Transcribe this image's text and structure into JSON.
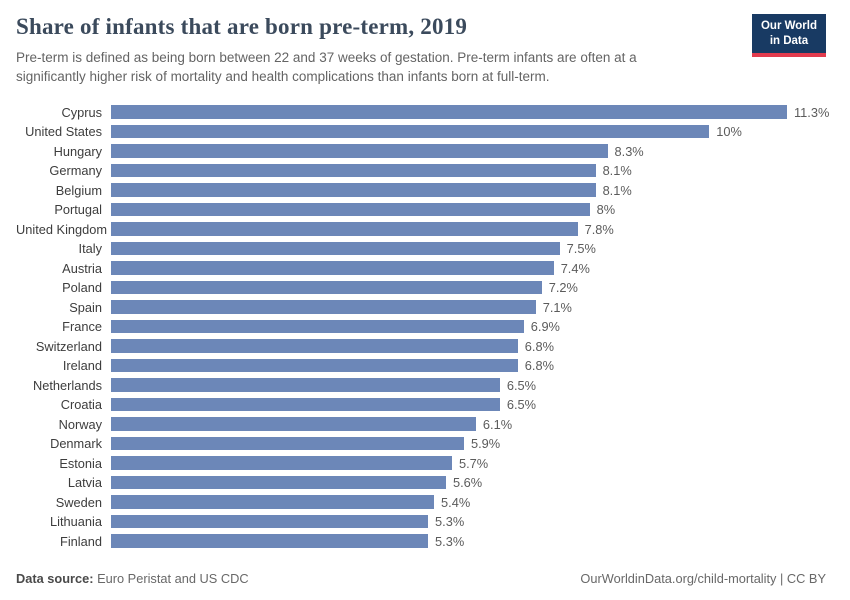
{
  "header": {
    "title": "Share of infants that are born pre-term, 2019",
    "subtitle": "Pre-term is defined as being born between 22 and 37 weeks of gestation. Pre-term infants are often at a significantly higher risk of mortality and health complications than infants born at full-term."
  },
  "logo": {
    "line1": "Our World",
    "line2": "in Data"
  },
  "chart_data": {
    "type": "bar",
    "orientation": "horizontal",
    "title": "Share of infants that are born pre-term, 2019",
    "xlim": [
      0,
      11.3
    ],
    "grid": false,
    "legend": "none",
    "bar_color": "#6c87b8",
    "categories": [
      "Cyprus",
      "United States",
      "Hungary",
      "Germany",
      "Belgium",
      "Portugal",
      "United Kingdom",
      "Italy",
      "Austria",
      "Poland",
      "Spain",
      "France",
      "Switzerland",
      "Ireland",
      "Netherlands",
      "Croatia",
      "Norway",
      "Denmark",
      "Estonia",
      "Latvia",
      "Sweden",
      "Lithuania",
      "Finland"
    ],
    "values": [
      11.3,
      10,
      8.3,
      8.1,
      8.1,
      8,
      7.8,
      7.5,
      7.4,
      7.2,
      7.1,
      6.9,
      6.8,
      6.8,
      6.5,
      6.5,
      6.1,
      5.9,
      5.7,
      5.6,
      5.4,
      5.3,
      5.3
    ],
    "value_labels": [
      "11.3%",
      "10%",
      "8.3%",
      "8.1%",
      "8.1%",
      "8%",
      "7.8%",
      "7.5%",
      "7.4%",
      "7.2%",
      "7.1%",
      "6.9%",
      "6.8%",
      "6.8%",
      "6.5%",
      "6.5%",
      "6.1%",
      "5.9%",
      "5.7%",
      "5.6%",
      "5.4%",
      "5.3%",
      "5.3%"
    ]
  },
  "footer": {
    "source_label": "Data source:",
    "source_text": " Euro Peristat and US CDC",
    "credit": "OurWorldinData.org/child-mortality | CC BY"
  },
  "colors": {
    "bar": "#6c87b8",
    "title": "#3b4a5c",
    "logo_background": "#183a63",
    "logo_accent": "#e23b4e"
  }
}
